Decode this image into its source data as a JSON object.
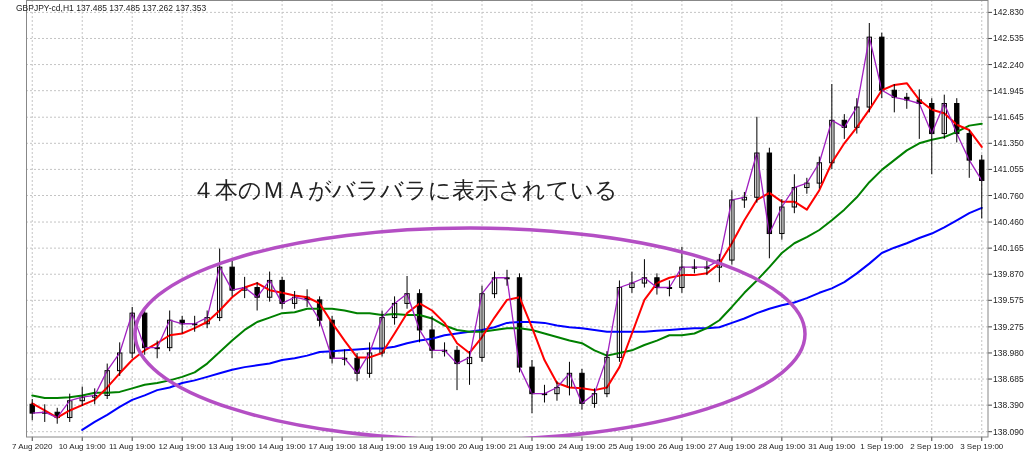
{
  "chart_data": {
    "type": "candlestick",
    "title": "GBPJPY-cd,H1  137.485 137.485 137.262 137.353",
    "annotations": [
      "４本のＭＡがバラバラに表示されている"
    ],
    "categories": [
      "7 Aug 2020",
      null,
      null,
      null,
      "10 Aug 19:00",
      null,
      null,
      null,
      "11 Aug 19:00",
      null,
      null,
      null,
      "12 Aug 19:00",
      null,
      null,
      null,
      "13 Aug 19:00",
      null,
      null,
      null,
      "14 Aug 19:00",
      null,
      null,
      null,
      "17 Aug 19:00",
      null,
      null,
      null,
      "18 Aug 19:00",
      null,
      null,
      null,
      "19 Aug 19:00",
      null,
      null,
      null,
      "20 Aug 19:00",
      null,
      null,
      null,
      "21 Aug 19:00",
      null,
      null,
      null,
      "24 Aug 19:00",
      null,
      null,
      null,
      "25 Aug 19:00",
      null,
      null,
      null,
      "26 Aug 19:00",
      null,
      null,
      null,
      "27 Aug 19:00",
      null,
      null,
      null,
      "28 Aug 19:00",
      null,
      null,
      null,
      "31 Aug 19:00",
      null,
      null,
      null,
      "1 Sep 19:00",
      null,
      null,
      null,
      "2 Sep 19:00",
      null,
      null,
      null,
      "3 Sep 19:00"
    ],
    "ohlc": [
      [
        138.4,
        138.46,
        138.22,
        138.3
      ],
      [
        138.3,
        138.4,
        138.2,
        138.31
      ],
      [
        138.31,
        138.36,
        138.18,
        138.25
      ],
      [
        138.25,
        138.52,
        138.2,
        138.44
      ],
      [
        138.44,
        138.6,
        138.38,
        138.48
      ],
      [
        138.48,
        138.58,
        138.4,
        138.5
      ],
      [
        138.5,
        138.86,
        138.46,
        138.78
      ],
      [
        138.78,
        139.1,
        138.72,
        138.98
      ],
      [
        138.98,
        139.5,
        138.92,
        139.43
      ],
      [
        139.43,
        139.48,
        138.96,
        139.04
      ],
      [
        139.04,
        139.12,
        138.92,
        139.04
      ],
      [
        139.04,
        139.46,
        139.0,
        139.35
      ],
      [
        139.35,
        139.4,
        139.2,
        139.31
      ],
      [
        139.31,
        139.4,
        139.22,
        139.31
      ],
      [
        139.31,
        139.46,
        139.26,
        139.38
      ],
      [
        139.38,
        140.16,
        139.34,
        139.95
      ],
      [
        139.95,
        140.02,
        139.62,
        139.69
      ],
      [
        139.69,
        139.84,
        139.6,
        139.72
      ],
      [
        139.72,
        139.78,
        139.46,
        139.61
      ],
      [
        139.61,
        139.9,
        139.56,
        139.8
      ],
      [
        139.8,
        139.84,
        139.48,
        139.54
      ],
      [
        139.54,
        139.68,
        139.48,
        139.61
      ],
      [
        139.61,
        139.7,
        139.5,
        139.58
      ],
      [
        139.58,
        139.62,
        139.28,
        139.35
      ],
      [
        139.35,
        139.4,
        138.86,
        138.92
      ],
      [
        138.92,
        139.02,
        138.84,
        138.92
      ],
      [
        138.92,
        138.98,
        138.66,
        138.75
      ],
      [
        138.75,
        139.1,
        138.7,
        138.98
      ],
      [
        138.98,
        139.46,
        138.94,
        139.38
      ],
      [
        139.38,
        139.62,
        139.3,
        139.54
      ],
      [
        139.54,
        139.85,
        139.48,
        139.65
      ],
      [
        139.65,
        139.7,
        139.1,
        139.24
      ],
      [
        139.24,
        139.4,
        138.92,
        139.01
      ],
      [
        139.01,
        139.1,
        138.94,
        139.01
      ],
      [
        139.01,
        139.06,
        138.56,
        138.86
      ],
      [
        138.86,
        139.0,
        138.62,
        138.93
      ],
      [
        138.93,
        139.74,
        138.88,
        139.65
      ],
      [
        139.65,
        139.9,
        139.6,
        139.83
      ],
      [
        139.83,
        139.92,
        139.74,
        139.83
      ],
      [
        139.83,
        139.88,
        138.76,
        138.82
      ],
      [
        138.82,
        138.9,
        138.3,
        138.52
      ],
      [
        138.52,
        138.62,
        138.42,
        138.52
      ],
      [
        138.52,
        138.66,
        138.44,
        138.59
      ],
      [
        138.59,
        138.88,
        138.5,
        138.75
      ],
      [
        138.75,
        138.8,
        138.34,
        138.41
      ],
      [
        138.41,
        138.58,
        138.36,
        138.52
      ],
      [
        138.52,
        139.0,
        138.48,
        138.93
      ],
      [
        138.93,
        139.8,
        138.88,
        139.72
      ],
      [
        139.72,
        139.9,
        139.66,
        139.77
      ],
      [
        139.77,
        140.04,
        139.72,
        139.83
      ],
      [
        139.83,
        139.88,
        139.64,
        139.72
      ],
      [
        139.72,
        139.8,
        139.62,
        139.72
      ],
      [
        139.72,
        140.18,
        139.66,
        139.95
      ],
      [
        139.95,
        140.04,
        139.88,
        139.95
      ],
      [
        139.95,
        140.02,
        139.86,
        139.95
      ],
      [
        139.95,
        140.1,
        139.78,
        140.03
      ],
      [
        140.03,
        140.82,
        139.98,
        140.71
      ],
      [
        140.71,
        140.8,
        140.62,
        140.74
      ],
      [
        140.74,
        141.65,
        140.68,
        141.24
      ],
      [
        141.24,
        141.3,
        140.05,
        140.33
      ],
      [
        140.33,
        140.72,
        140.26,
        140.63
      ],
      [
        140.63,
        141.0,
        140.56,
        140.85
      ],
      [
        140.85,
        140.96,
        140.78,
        140.9
      ],
      [
        140.9,
        141.2,
        140.84,
        141.13
      ],
      [
        141.13,
        142.02,
        141.06,
        141.61
      ],
      [
        141.61,
        141.68,
        141.4,
        141.53
      ],
      [
        141.53,
        141.86,
        141.46,
        141.76
      ],
      [
        141.76,
        142.71,
        141.7,
        142.55
      ],
      [
        142.55,
        142.6,
        141.86,
        141.95
      ],
      [
        141.95,
        142.02,
        141.7,
        141.87
      ],
      [
        141.87,
        141.92,
        141.74,
        141.84
      ],
      [
        141.84,
        141.96,
        141.4,
        141.8
      ],
      [
        141.8,
        141.86,
        141.0,
        141.46
      ],
      [
        141.46,
        141.9,
        141.4,
        141.8
      ],
      [
        141.8,
        141.86,
        141.36,
        141.46
      ],
      [
        141.46,
        141.5,
        140.96,
        141.16
      ],
      [
        141.16,
        141.22,
        140.5,
        140.93
      ]
    ],
    "series": [
      {
        "type": "line",
        "color": "#0000ff",
        "values": [
          null,
          null,
          null,
          null,
          138.11,
          138.2,
          138.28,
          138.37,
          138.45,
          138.5,
          138.56,
          138.59,
          138.64,
          138.67,
          138.71,
          138.75,
          138.79,
          138.82,
          138.84,
          138.86,
          138.9,
          138.92,
          138.95,
          138.99,
          139.0,
          139.01,
          139.02,
          139.03,
          139.03,
          139.05,
          139.09,
          139.12,
          139.14,
          139.18,
          139.2,
          139.22,
          139.24,
          139.27,
          139.32,
          139.33,
          139.33,
          139.32,
          139.29,
          139.27,
          139.26,
          139.24,
          139.22,
          139.22,
          139.22,
          139.22,
          139.23,
          139.24,
          139.25,
          139.26,
          139.26,
          139.27,
          139.32,
          139.37,
          139.43,
          139.48,
          139.52,
          139.55,
          139.6,
          139.66,
          139.71,
          139.78,
          139.88,
          139.99,
          140.11,
          140.17,
          140.22,
          140.28,
          140.33,
          140.4,
          140.48,
          140.56,
          140.62
        ]
      },
      {
        "type": "line",
        "color": "#008000",
        "values": [
          138.5,
          138.47,
          138.47,
          138.48,
          138.5,
          138.53,
          138.53,
          138.54,
          138.58,
          138.62,
          138.64,
          138.67,
          138.71,
          138.76,
          138.86,
          138.99,
          139.12,
          139.24,
          139.33,
          139.38,
          139.43,
          139.44,
          139.48,
          139.48,
          139.48,
          139.46,
          139.43,
          139.43,
          139.41,
          139.42,
          139.41,
          139.41,
          139.37,
          139.29,
          139.24,
          139.22,
          139.22,
          139.24,
          139.26,
          139.26,
          139.24,
          139.2,
          139.16,
          139.12,
          139.09,
          139.01,
          138.95,
          138.98,
          139.01,
          139.07,
          139.12,
          139.18,
          139.18,
          139.2,
          139.26,
          139.35,
          139.5,
          139.66,
          139.8,
          139.95,
          140.11,
          140.22,
          140.29,
          140.37,
          140.48,
          140.6,
          140.74,
          140.91,
          141.05,
          141.16,
          141.27,
          141.35,
          141.39,
          141.42,
          141.48,
          141.55,
          141.57
        ]
      },
      {
        "type": "line",
        "color": "#ff0000",
        "values": [
          138.41,
          138.33,
          138.25,
          138.33,
          138.39,
          138.45,
          138.59,
          138.75,
          138.9,
          139.01,
          139.09,
          139.18,
          139.2,
          139.26,
          139.33,
          139.46,
          139.61,
          139.72,
          139.77,
          139.69,
          139.66,
          139.63,
          139.61,
          139.54,
          139.32,
          139.12,
          138.93,
          138.93,
          138.98,
          139.2,
          139.43,
          139.54,
          139.46,
          139.32,
          139.09,
          138.98,
          139.16,
          139.38,
          139.58,
          139.61,
          139.27,
          138.9,
          138.64,
          138.59,
          138.58,
          138.56,
          138.59,
          138.82,
          139.2,
          139.58,
          139.77,
          139.83,
          139.86,
          139.86,
          139.88,
          139.99,
          140.22,
          140.48,
          140.71,
          140.79,
          140.69,
          140.69,
          140.6,
          140.82,
          141.13,
          141.35,
          141.53,
          141.73,
          141.95,
          142.01,
          142.03,
          141.84,
          141.73,
          141.69,
          141.56,
          141.5,
          141.31
        ]
      },
      {
        "type": "line",
        "color": "#a020c0",
        "values": [
          138.3,
          138.31,
          138.25,
          138.44,
          138.48,
          138.5,
          138.78,
          138.98,
          139.43,
          139.04,
          139.04,
          139.35,
          139.31,
          139.31,
          139.38,
          139.95,
          139.69,
          139.72,
          139.61,
          139.8,
          139.54,
          139.61,
          139.58,
          139.35,
          138.92,
          138.92,
          138.75,
          138.98,
          139.38,
          139.54,
          139.65,
          139.24,
          139.01,
          139.01,
          138.86,
          138.93,
          139.65,
          139.83,
          139.83,
          138.82,
          138.52,
          138.52,
          138.59,
          138.75,
          138.41,
          138.52,
          138.93,
          139.72,
          139.77,
          139.83,
          139.72,
          139.72,
          139.95,
          139.95,
          139.95,
          140.03,
          140.71,
          140.74,
          141.24,
          140.33,
          140.63,
          140.85,
          140.9,
          141.13,
          141.61,
          141.53,
          141.76,
          142.55,
          141.95,
          141.87,
          141.84,
          141.8,
          141.46,
          141.8,
          141.46,
          141.16,
          140.93
        ]
      }
    ],
    "ylim": [
      138.03,
      142.97
    ],
    "yticks": [
      {
        "value": 138.09,
        "label": "138.090"
      },
      {
        "value": 138.39,
        "label": "138.390"
      },
      138.685,
      {
        "value": 138.98,
        "label": "138.980"
      },
      139.275,
      139.575,
      {
        "value": 139.87,
        "label": "139.870"
      },
      140.165,
      {
        "value": 140.46,
        "label": "140.460"
      },
      {
        "value": 140.76,
        "label": "140.760"
      },
      141.055,
      {
        "value": 141.35,
        "label": "141.350"
      },
      141.645,
      141.945,
      {
        "value": 142.24,
        "label": "142.240"
      },
      142.535,
      {
        "value": 142.83,
        "label": "142.830"
      }
    ],
    "grid": true
  }
}
